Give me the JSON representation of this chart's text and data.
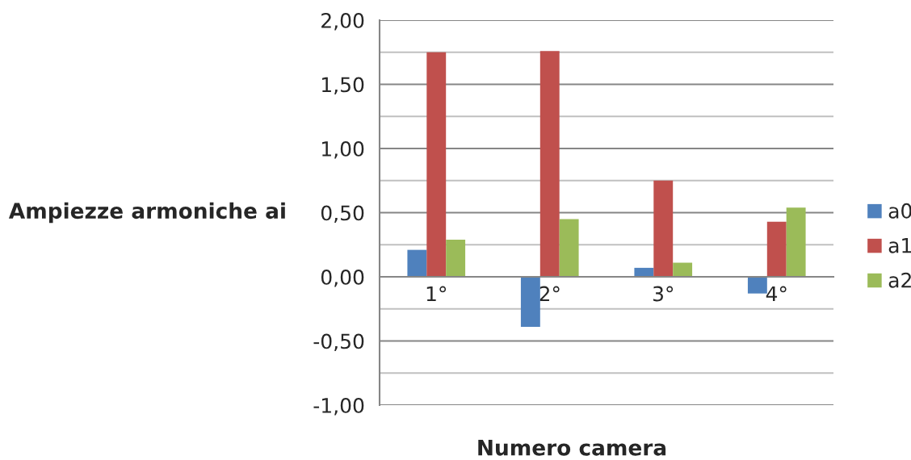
{
  "chart_data": {
    "type": "bar",
    "xlabel": "Numero camera",
    "ylabel": "Ampiezze armoniche ai",
    "categories": [
      "1°",
      "2°",
      "3°",
      "4°"
    ],
    "series": [
      {
        "name": "a0",
        "color": "#4f81bd",
        "values": [
          0.21,
          -0.39,
          0.07,
          -0.13
        ]
      },
      {
        "name": "a1",
        "color": "#c0504d",
        "values": [
          1.75,
          1.76,
          0.75,
          0.43
        ]
      },
      {
        "name": "a2",
        "color": "#9bbb59",
        "values": [
          0.29,
          0.45,
          0.11,
          0.54
        ]
      }
    ],
    "ylim": [
      -1,
      2
    ],
    "yticks": [
      {
        "value": -1,
        "label": "-1,00"
      },
      {
        "value": -0.75,
        "label": null
      },
      {
        "value": -0.5,
        "label": "-0,50"
      },
      {
        "value": -0.25,
        "label": null
      },
      {
        "value": 0,
        "label": "0,00"
      },
      {
        "value": 0.25,
        "label": null
      },
      {
        "value": 0.5,
        "label": "0,50"
      },
      {
        "value": 0.75,
        "label": null
      },
      {
        "value": 1,
        "label": "1,00"
      },
      {
        "value": 1.25,
        "label": null
      },
      {
        "value": 1.5,
        "label": "1,50"
      },
      {
        "value": 1.75,
        "label": null
      },
      {
        "value": 2,
        "label": "2,00"
      }
    ],
    "grid": true,
    "legend": "right"
  }
}
